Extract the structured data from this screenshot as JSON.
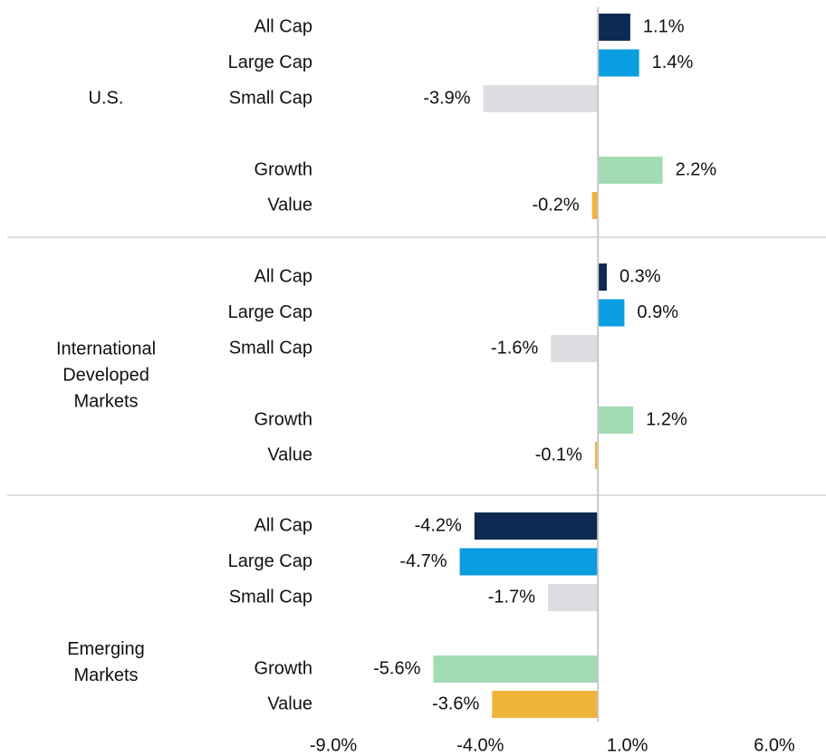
{
  "chart_data": {
    "type": "grouped-bar",
    "categories": [
      "All Cap",
      "Large Cap",
      "Small Cap",
      "Growth",
      "Value"
    ],
    "colors": [
      "#0d2a52",
      "#0a9de0",
      "#dcdde0",
      "#a3dbb4",
      "#f0b43a"
    ],
    "groups": [
      {
        "name": "U.S.",
        "values": [
          1.1,
          1.4,
          -3.9,
          2.2,
          -0.2
        ],
        "value_labels": [
          "1.1%",
          "1.4%",
          "-3.9%",
          "2.2%",
          "-0.2%"
        ]
      },
      {
        "name": "International Developed Markets",
        "values": [
          0.3,
          0.9,
          -1.6,
          1.2,
          -0.1
        ],
        "value_labels": [
          "0.3%",
          "0.9%",
          "-1.6%",
          "1.2%",
          "-0.1%"
        ]
      },
      {
        "name": "Emerging Markets",
        "values": [
          -4.2,
          -4.7,
          -1.7,
          -5.6,
          -3.6
        ],
        "value_labels": [
          "-4.2%",
          "-4.7%",
          "-1.7%",
          "-5.6%",
          "-3.6%"
        ]
      }
    ],
    "xlim": [
      -9,
      6
    ],
    "xticks": [
      {
        "value": -9,
        "label": "-9.0%"
      },
      {
        "value": -4,
        "label": "-4.0%"
      },
      {
        "value": 1,
        "label": "1.0%"
      },
      {
        "value": 6,
        "label": "6.0%"
      }
    ]
  }
}
